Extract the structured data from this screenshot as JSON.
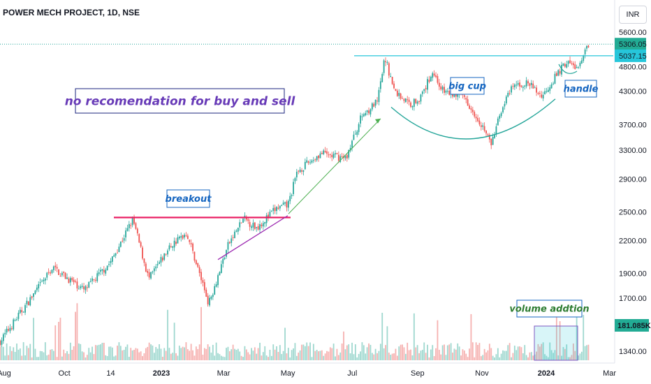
{
  "header": {
    "symbol": "POWER MECH PROJECT, 1D, NSE",
    "currency": "INR"
  },
  "chart_data": {
    "type": "candlestick",
    "y_scale": "log",
    "ylim": [
      1280,
      5800
    ],
    "y_ticks": [
      1340,
      1700,
      1900,
      2200,
      2500,
      2900,
      3300,
      3700,
      4300,
      4800,
      5600
    ],
    "y_tick_labels": [
      "1340.00",
      "1700.00",
      "1900.00",
      "2200.00",
      "2500.00",
      "2900.00",
      "3300.00",
      "3700.00",
      "4300.00",
      "4800.00",
      "5600.00"
    ],
    "x_ticks": [
      "Aug",
      "Oct",
      "14",
      "2023",
      "Mar",
      "May",
      "Jul",
      "Sep",
      "Nov",
      "2024",
      "Mar"
    ],
    "price_labels": [
      {
        "value": 5306.05,
        "text": "5306.05",
        "color": "#22ab94"
      },
      {
        "value": 5037.15,
        "text": "5037.15",
        "color": "#26c6da"
      }
    ],
    "volume_label": {
      "text": "181.085K",
      "color": "#22ab94"
    },
    "key_points": [
      {
        "date": "2022-08",
        "price": 1400
      },
      {
        "date": "2022-09-20",
        "price": 1950
      },
      {
        "date": "2022-10-20",
        "price": 1760
      },
      {
        "date": "2022-11-14",
        "price": 2000
      },
      {
        "date": "2022-12-05",
        "price": 2420
      },
      {
        "date": "2022-12-20",
        "price": 1850
      },
      {
        "date": "2023-01-10",
        "price": 2150
      },
      {
        "date": "2023-01-25",
        "price": 2280
      },
      {
        "date": "2023-02-15",
        "price": 1660
      },
      {
        "date": "2023-03-05",
        "price": 2150
      },
      {
        "date": "2023-03-20",
        "price": 2430
      },
      {
        "date": "2023-04-01",
        "price": 2330
      },
      {
        "date": "2023-04-20",
        "price": 2540
      },
      {
        "date": "2023-05-01",
        "price": 2580
      },
      {
        "date": "2023-05-10",
        "price": 3000
      },
      {
        "date": "2023-06-01",
        "price": 3250
      },
      {
        "date": "2023-06-25",
        "price": 3180
      },
      {
        "date": "2023-07-10",
        "price": 3850
      },
      {
        "date": "2023-07-25",
        "price": 4100
      },
      {
        "date": "2023-08-01",
        "price": 5000
      },
      {
        "date": "2023-08-10",
        "price": 4300
      },
      {
        "date": "2023-08-25",
        "price": 4050
      },
      {
        "date": "2023-09-05",
        "price": 4200
      },
      {
        "date": "2023-09-15",
        "price": 4700
      },
      {
        "date": "2023-09-25",
        "price": 4300
      },
      {
        "date": "2023-10-15",
        "price": 4200
      },
      {
        "date": "2023-11-01",
        "price": 3700
      },
      {
        "date": "2023-11-10",
        "price": 3380
      },
      {
        "date": "2023-11-20",
        "price": 4000
      },
      {
        "date": "2023-12-01",
        "price": 4400
      },
      {
        "date": "2023-12-15",
        "price": 4450
      },
      {
        "date": "2023-12-28",
        "price": 4200
      },
      {
        "date": "2024-01-10",
        "price": 4600
      },
      {
        "date": "2024-01-20",
        "price": 4900
      },
      {
        "date": "2024-02-01",
        "price": 4750
      },
      {
        "date": "2024-02-10",
        "price": 5306.05
      }
    ],
    "annotations": {
      "disclaimer": "no recomendation for buy and sell",
      "breakout": "breakout",
      "cup": "big cup",
      "handle": "handle",
      "volume": "volume addtion"
    },
    "colors": {
      "up": "#26a69a",
      "down": "#ef5350",
      "resistance": "#e91e63",
      "trend": "#9c27b0",
      "arrow": "#4caf50",
      "cup": "#26a69a",
      "level": "#26c6da",
      "annotation_text": "#1565c0",
      "disclaimer_text": "#673ab7",
      "disclaimer_border": "#1a237e"
    }
  }
}
